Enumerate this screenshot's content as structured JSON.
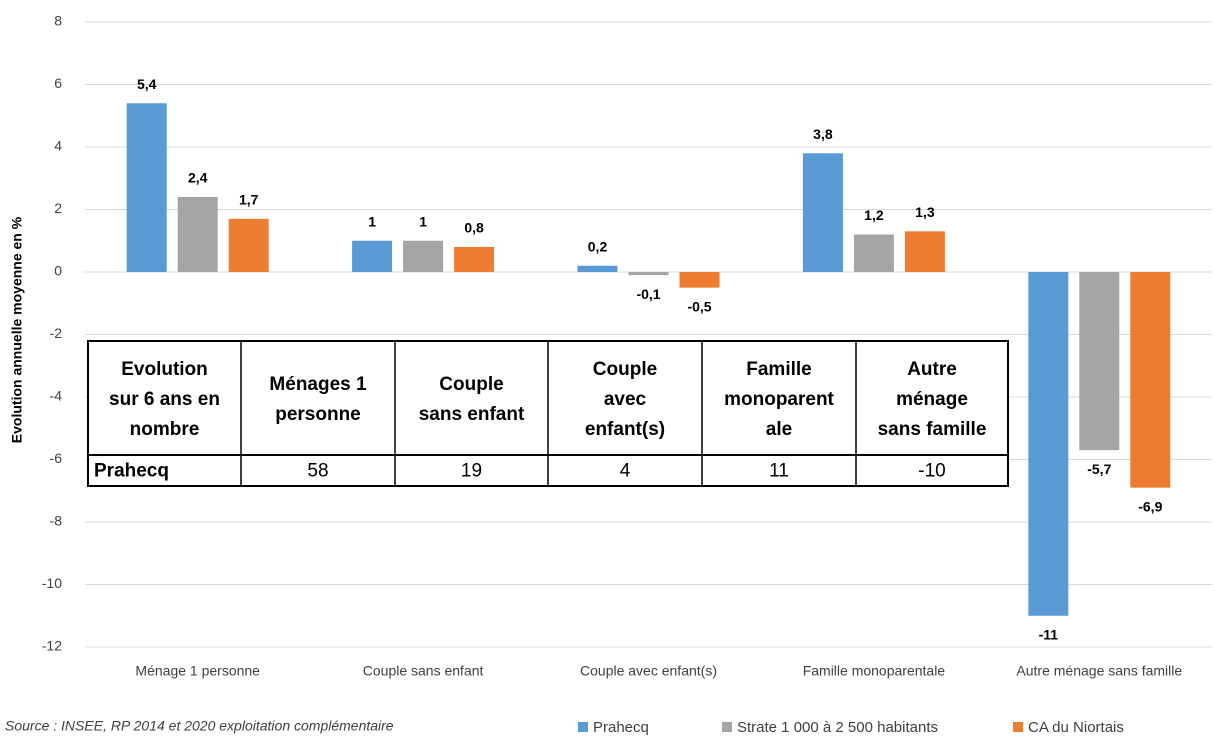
{
  "chart_data": {
    "type": "bar",
    "y_label": "Evolution annuelle moyenne en %",
    "categories": [
      "Ménage 1 personne",
      "Couple sans enfant",
      "Couple avec enfant(s)",
      "Famille monoparentale",
      "Autre ménage sans famille"
    ],
    "series": [
      {
        "name": "Prahecq",
        "color": "#5b9bd5",
        "values": [
          5.4,
          1,
          0.2,
          3.8,
          -11
        ],
        "value_labels": [
          "5,4",
          "1",
          "0,2",
          "3,8",
          "-11"
        ]
      },
      {
        "name": "Strate 1 000 à 2 500 habitants",
        "color": "#a5a5a5",
        "values": [
          2.4,
          1,
          -0.1,
          1.2,
          -5.7
        ],
        "value_labels": [
          "2,4",
          "1",
          "-0,1",
          "1,2",
          "-5,7"
        ]
      },
      {
        "name": "CA du Niortais",
        "color": "#ed7d31",
        "values": [
          1.7,
          0.8,
          -0.5,
          1.3,
          -6.9
        ],
        "value_labels": [
          "1,7",
          "0,8",
          "-0,5",
          "1,3",
          "-6,9"
        ]
      }
    ],
    "ylim": [
      -12,
      8
    ],
    "yticks": [
      -12,
      -10,
      -8,
      -6,
      -4,
      -2,
      0,
      2,
      4,
      6,
      8
    ],
    "grid": true,
    "legend": "bottom",
    "source": "Source : INSEE, RP 2014 et 2020 exploitation complémentaire"
  },
  "table": {
    "header": [
      [
        "Evolution",
        "sur 6 ans en",
        "nombre"
      ],
      [
        "Ménages 1",
        "personne"
      ],
      [
        "Couple",
        "sans enfant"
      ],
      [
        "Couple",
        "avec",
        "enfant(s)"
      ],
      [
        "Famille",
        "monoparent",
        "ale"
      ],
      [
        "Autre",
        "ménage",
        "sans famille"
      ]
    ],
    "row": [
      "Prahecq",
      58,
      19,
      4,
      11,
      -10
    ]
  }
}
